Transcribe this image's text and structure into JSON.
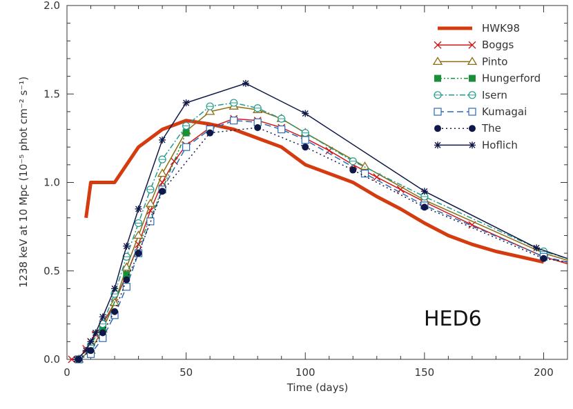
{
  "chart_data": {
    "type": "line",
    "title": "",
    "xlabel": "Time (days)",
    "ylabel": "1238 keV at 10 Mpc (10⁻⁵ phot cm⁻² s⁻¹)",
    "xlim": [
      0,
      210
    ],
    "ylim": [
      0.0,
      2.0
    ],
    "xticks": [
      0,
      50,
      100,
      150,
      200
    ],
    "xtick_labels": [
      "0",
      "50",
      "100",
      "150",
      "200"
    ],
    "yticks": [
      0.0,
      0.5,
      1.0,
      1.5,
      2.0
    ],
    "ytick_labels": [
      "0.0",
      "0.5",
      "1.0",
      "1.5",
      "2.0"
    ],
    "grid": false,
    "legend_position": "top-right",
    "annotation": "HED6",
    "series": [
      {
        "name": "HWK98",
        "color": "#d43c10",
        "dash": "",
        "width": 5,
        "marker": "none",
        "x": [
          8,
          10,
          20,
          30,
          40,
          50,
          60,
          70,
          80,
          90,
          100,
          120,
          130,
          140,
          150,
          160,
          170,
          180,
          190,
          200
        ],
        "y": [
          0.8,
          1.0,
          1.0,
          1.2,
          1.3,
          1.35,
          1.33,
          1.3,
          1.25,
          1.2,
          1.1,
          1.0,
          0.92,
          0.85,
          0.77,
          0.7,
          0.65,
          0.61,
          0.58,
          0.55
        ]
      },
      {
        "name": "Boggs",
        "color": "#d01818",
        "dash": "",
        "width": 1.5,
        "marker": "x",
        "x": [
          2,
          5,
          8,
          10,
          12,
          15,
          20,
          25,
          30,
          35,
          40,
          45,
          50,
          60,
          70,
          80,
          90,
          100,
          110,
          120,
          130,
          140,
          150,
          170,
          200,
          210
        ],
        "y": [
          0.0,
          0.0,
          0.06,
          0.1,
          0.14,
          0.2,
          0.32,
          0.48,
          0.65,
          0.84,
          1.0,
          1.12,
          1.21,
          1.31,
          1.36,
          1.35,
          1.31,
          1.25,
          1.18,
          1.1,
          1.03,
          0.96,
          0.89,
          0.76,
          0.58,
          0.54
        ]
      },
      {
        "name": "Pinto",
        "color": "#8a6d10",
        "dash": "",
        "width": 1.5,
        "marker": "triangle",
        "x": [
          5,
          10,
          15,
          20,
          25,
          30,
          35,
          40,
          50,
          60,
          70,
          80,
          90,
          100,
          125,
          150,
          200,
          210
        ],
        "y": [
          0.0,
          0.05,
          0.17,
          0.32,
          0.52,
          0.7,
          0.88,
          1.05,
          1.29,
          1.4,
          1.43,
          1.41,
          1.36,
          1.28,
          1.09,
          0.9,
          0.6,
          0.56
        ]
      },
      {
        "name": "Hungerford",
        "color": "#1a8f3a",
        "dash": "6,3,2,3,2,3",
        "width": 1.5,
        "marker": "filledsquare",
        "x": [
          15,
          25,
          50
        ],
        "y": [
          0.17,
          0.48,
          1.28
        ]
      },
      {
        "name": "Isern",
        "color": "#1f9c8c",
        "dash": "8,3,2,3",
        "width": 1.5,
        "marker": "circle",
        "x": [
          5,
          10,
          15,
          20,
          25,
          30,
          35,
          40,
          50,
          60,
          70,
          80,
          90,
          100,
          120,
          150,
          200,
          210
        ],
        "y": [
          0.0,
          0.08,
          0.2,
          0.37,
          0.58,
          0.77,
          0.96,
          1.13,
          1.32,
          1.43,
          1.45,
          1.42,
          1.36,
          1.28,
          1.12,
          0.92,
          0.61,
          0.57
        ]
      },
      {
        "name": "Kumagai",
        "color": "#2c68b0",
        "dash": "9,5",
        "width": 1.5,
        "marker": "square",
        "x": [
          5,
          10,
          15,
          20,
          25,
          30,
          35,
          40,
          50,
          60,
          70,
          80,
          90,
          100,
          125,
          150,
          200,
          210
        ],
        "y": [
          0.0,
          0.03,
          0.12,
          0.25,
          0.41,
          0.6,
          0.78,
          0.96,
          1.2,
          1.3,
          1.35,
          1.34,
          1.3,
          1.24,
          1.05,
          0.87,
          0.58,
          0.55
        ]
      },
      {
        "name": "The",
        "color": "#101848",
        "dash": "2,4",
        "width": 1.5,
        "marker": "filledcircle",
        "x": [
          5,
          10,
          15,
          20,
          25,
          30,
          40,
          60,
          80,
          100,
          120,
          150,
          200,
          210
        ],
        "y": [
          0.0,
          0.05,
          0.15,
          0.27,
          0.45,
          0.6,
          0.95,
          1.28,
          1.31,
          1.2,
          1.07,
          0.86,
          0.57,
          0.55
        ]
      },
      {
        "name": "Hoflich",
        "color": "#101848",
        "dash": "",
        "width": 1.5,
        "marker": "asterisk",
        "x": [
          4,
          8,
          10,
          12,
          15,
          20,
          25,
          30,
          40,
          50,
          75,
          100,
          150,
          197,
          210
        ],
        "y": [
          0.0,
          0.05,
          0.1,
          0.15,
          0.24,
          0.4,
          0.64,
          0.85,
          1.24,
          1.45,
          1.56,
          1.39,
          0.95,
          0.63,
          0.57
        ]
      }
    ]
  }
}
